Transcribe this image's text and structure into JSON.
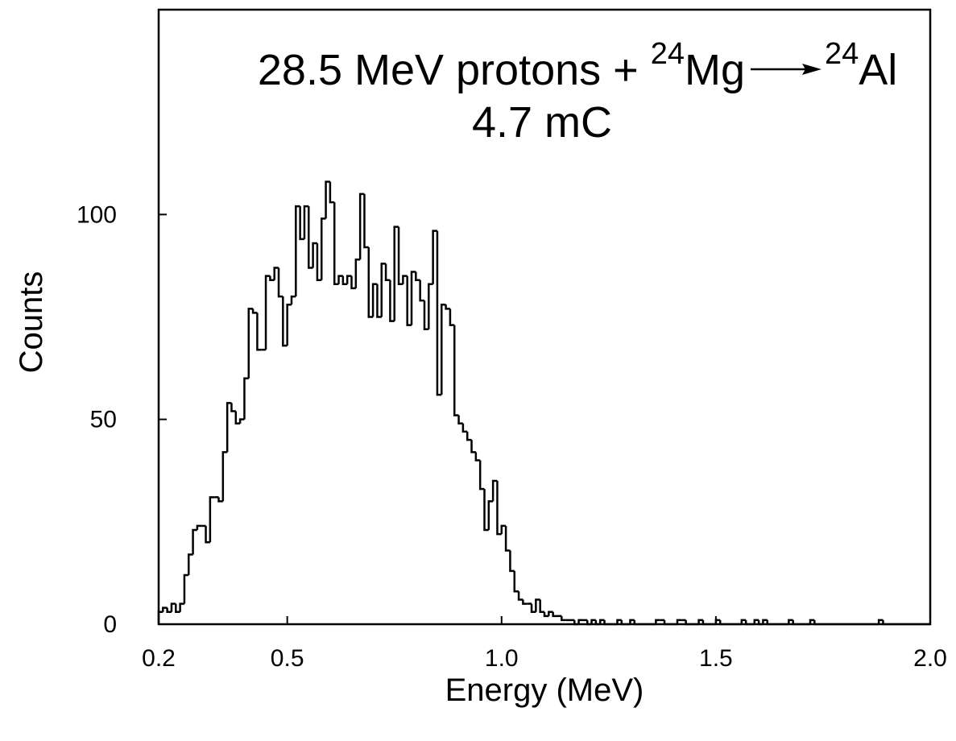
{
  "chart_data": {
    "type": "histogram",
    "title_parts": [
      "28.5 MeV protons +",
      "24",
      "Mg",
      "24",
      "Al"
    ],
    "subtitle": "4.7 mC",
    "x_label": "Energy (MeV)",
    "y_label": "Counts",
    "xlim": [
      0.2,
      2.0
    ],
    "ylim": [
      0,
      150
    ],
    "xticks": [
      0.2,
      0.5,
      {
        "value": 1,
        "label": "1.0"
      },
      1.5,
      {
        "value": 2,
        "label": "2.0"
      }
    ],
    "yticks": [
      0,
      50,
      100
    ],
    "color": "#000000",
    "bins": [
      0.2,
      0.21,
      0.22,
      0.23,
      0.24,
      0.25,
      0.26,
      0.27,
      0.28,
      0.29,
      0.3,
      0.31,
      0.32,
      0.33,
      0.34,
      0.35,
      0.36,
      0.37,
      0.38,
      0.39,
      0.4,
      0.41,
      0.42,
      0.43,
      0.44,
      0.45,
      0.46,
      0.47,
      0.48,
      0.49,
      0.5,
      0.51,
      0.52,
      0.53,
      0.54,
      0.55,
      0.56,
      0.57,
      0.58,
      0.59,
      0.6,
      0.61,
      0.62,
      0.63,
      0.64,
      0.65,
      0.66,
      0.67,
      0.68,
      0.69,
      0.7,
      0.71,
      0.72,
      0.73,
      0.74,
      0.75,
      0.76,
      0.77,
      0.78,
      0.79,
      0.8,
      0.81,
      0.82,
      0.83,
      0.84,
      0.85,
      0.86,
      0.87,
      0.88,
      0.89,
      0.9,
      0.91,
      0.92,
      0.93,
      0.94,
      0.95,
      0.96,
      0.97,
      0.98,
      0.99,
      1,
      1.01,
      1.02,
      1.03,
      1.04,
      1.05,
      1.06,
      1.07,
      1.08,
      1.09,
      1.1,
      1.11,
      1.12,
      1.13,
      1.14,
      1.15,
      1.16,
      1.17,
      1.18,
      1.19,
      1.2,
      1.21,
      1.22,
      1.23,
      1.24,
      1.25,
      1.26,
      1.27,
      1.28,
      1.29,
      1.3,
      1.31,
      1.32,
      1.33,
      1.34,
      1.35,
      1.36,
      1.37,
      1.38,
      1.39,
      1.4,
      1.41,
      1.42,
      1.43,
      1.44,
      1.45,
      1.46,
      1.47,
      1.48,
      1.49,
      1.5,
      1.51,
      1.52,
      1.53,
      1.54,
      1.55,
      1.56,
      1.57,
      1.58,
      1.59,
      1.6,
      1.61,
      1.62,
      1.63,
      1.64,
      1.65,
      1.66,
      1.67,
      1.68,
      1.69,
      1.7,
      1.71,
      1.72,
      1.73,
      1.74,
      1.75,
      1.76,
      1.77,
      1.78,
      1.79,
      1.8,
      1.81,
      1.82,
      1.83,
      1.84,
      1.85,
      1.86,
      1.87,
      1.88,
      1.89,
      1.9,
      1.91,
      1.92,
      1.93,
      1.94,
      1.95,
      1.96,
      1.97,
      1.98,
      1.99,
      2.0
    ],
    "values": [
      3,
      4,
      3,
      5,
      3,
      5,
      12,
      17,
      23,
      24,
      24,
      20,
      31,
      31,
      30,
      42,
      54,
      52,
      49,
      50,
      60,
      77,
      76,
      67,
      67,
      85,
      84,
      87,
      80,
      68,
      78,
      80,
      102,
      94,
      102,
      87,
      93,
      84,
      99,
      108,
      103,
      83,
      85,
      83,
      85,
      82,
      89,
      105,
      92,
      75,
      83,
      75,
      88,
      84,
      74,
      97,
      83,
      85,
      73,
      86,
      84,
      79,
      72,
      83,
      96,
      56,
      78,
      77,
      73,
      51,
      49,
      47,
      45,
      42,
      40,
      33,
      23,
      30,
      35,
      22,
      24,
      18,
      13,
      8,
      6,
      5,
      5,
      3,
      6,
      3,
      2,
      3,
      2,
      2,
      1,
      1,
      1,
      0,
      1,
      1,
      0,
      1,
      0,
      1,
      0,
      0,
      0,
      1,
      0,
      0,
      1,
      0,
      0,
      0,
      0,
      0,
      1,
      1,
      0,
      0,
      0,
      1,
      1,
      0,
      0,
      0,
      1,
      0,
      0,
      0,
      1,
      0,
      0,
      0,
      0,
      0,
      1,
      0,
      0,
      1,
      0,
      1,
      0,
      0,
      0,
      0,
      0,
      1,
      0,
      0,
      0,
      0,
      1,
      0,
      0,
      0,
      0,
      0,
      0,
      0,
      0,
      0,
      0,
      0,
      0,
      0,
      0,
      0,
      1,
      0,
      0,
      0,
      0,
      0,
      0,
      0,
      0,
      0,
      0,
      0
    ]
  }
}
